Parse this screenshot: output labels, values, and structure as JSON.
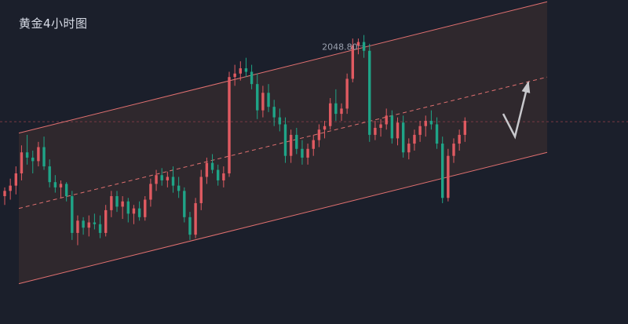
{
  "chart_data": {
    "type": "candlestick",
    "title": "黄金4小时图",
    "annotations": [
      {
        "label": "2048.80",
        "value": 2048.8
      }
    ],
    "colors": {
      "background": "#1b1f2b",
      "up": "#e05a61",
      "down": "#1fa487",
      "channel_line": "#e07070",
      "channel_fill": "#322a2e",
      "reference_line": "#7a3a44",
      "arrow": "#c8c8cc"
    },
    "ylim": [
      1890,
      2075
    ],
    "reference_price": 2005.5,
    "channel": {
      "upper_start": 1999,
      "upper_end": 2074,
      "mid_start": 1956,
      "mid_end": 2031,
      "lower_start": 1913,
      "lower_end": 1988
    },
    "projection": {
      "type": "arrow",
      "path_prices": [
        2010,
        1997,
        2028
      ]
    },
    "candles": [
      [
        1963,
        1968,
        1958,
        1966
      ],
      [
        1966,
        1973,
        1961,
        1969
      ],
      [
        1969,
        1980,
        1964,
        1976
      ],
      [
        1976,
        1992,
        1972,
        1988
      ],
      [
        1988,
        1998,
        1981,
        1985
      ],
      [
        1985,
        1989,
        1976,
        1983
      ],
      [
        1983,
        1994,
        1980,
        1991
      ],
      [
        1991,
        1997,
        1978,
        1980
      ],
      [
        1980,
        1984,
        1968,
        1971
      ],
      [
        1971,
        1975,
        1965,
        1968
      ],
      [
        1968,
        1972,
        1962,
        1970
      ],
      [
        1970,
        1971,
        1960,
        1963
      ],
      [
        1963,
        1966,
        1938,
        1942
      ],
      [
        1942,
        1952,
        1935,
        1949
      ],
      [
        1949,
        1951,
        1941,
        1945
      ],
      [
        1945,
        1952,
        1940,
        1948
      ],
      [
        1948,
        1953,
        1944,
        1947
      ],
      [
        1947,
        1952,
        1939,
        1942
      ],
      [
        1942,
        1958,
        1940,
        1955
      ],
      [
        1955,
        1966,
        1951,
        1963
      ],
      [
        1963,
        1966,
        1954,
        1957
      ],
      [
        1957,
        1963,
        1950,
        1960
      ],
      [
        1960,
        1962,
        1948,
        1953
      ],
      [
        1953,
        1958,
        1947,
        1956
      ],
      [
        1956,
        1960,
        1949,
        1951
      ],
      [
        1951,
        1963,
        1949,
        1961
      ],
      [
        1961,
        1973,
        1957,
        1970
      ],
      [
        1970,
        1978,
        1966,
        1975
      ],
      [
        1975,
        1979,
        1969,
        1972
      ],
      [
        1972,
        1977,
        1968,
        1974
      ],
      [
        1974,
        1980,
        1965,
        1969
      ],
      [
        1969,
        1974,
        1962,
        1966
      ],
      [
        1966,
        1968,
        1948,
        1951
      ],
      [
        1951,
        1954,
        1938,
        1941
      ],
      [
        1941,
        1962,
        1939,
        1959
      ],
      [
        1959,
        1978,
        1955,
        1974
      ],
      [
        1974,
        1985,
        1970,
        1982
      ],
      [
        1982,
        1987,
        1976,
        1978
      ],
      [
        1978,
        1981,
        1969,
        1972
      ],
      [
        1972,
        1980,
        1968,
        1976
      ],
      [
        1976,
        2034,
        1974,
        2031
      ],
      [
        2031,
        2038,
        2026,
        2033
      ],
      [
        2033,
        2040,
        2029,
        2036
      ],
      [
        2036,
        2042,
        2031,
        2034
      ],
      [
        2034,
        2038,
        2024,
        2027
      ],
      [
        2027,
        2033,
        2007,
        2012
      ],
      [
        2012,
        2026,
        2008,
        2022
      ],
      [
        2022,
        2027,
        2011,
        2014
      ],
      [
        2014,
        2018,
        2003,
        2008
      ],
      [
        2008,
        2013,
        2000,
        2004
      ],
      [
        2004,
        2008,
        1982,
        1986
      ],
      [
        1986,
        2001,
        1982,
        1998
      ],
      [
        1998,
        2002,
        1987,
        1990
      ],
      [
        1990,
        1995,
        1981,
        1985
      ],
      [
        1985,
        1993,
        1981,
        1990
      ],
      [
        1990,
        1998,
        1986,
        1995
      ],
      [
        1995,
        2004,
        1991,
        2001
      ],
      [
        2001,
        2006,
        1996,
        2003
      ],
      [
        2003,
        2019,
        2001,
        2016
      ],
      [
        2016,
        2024,
        2006,
        2010
      ],
      [
        2010,
        2016,
        2006,
        2013
      ],
      [
        2013,
        2033,
        2010,
        2030
      ],
      [
        2030,
        2053,
        2028,
        2049
      ],
      [
        2049,
        2053,
        2044,
        2051
      ],
      [
        2051,
        2055,
        2042,
        2046
      ],
      [
        2046,
        2050,
        1994,
        1998
      ],
      [
        1998,
        2006,
        1995,
        2002
      ],
      [
        2002,
        2007,
        1997,
        2004
      ],
      [
        2004,
        2013,
        2001,
        2009
      ],
      [
        2009,
        2012,
        1993,
        1996
      ],
      [
        1996,
        2008,
        1992,
        2005
      ],
      [
        2005,
        2009,
        1985,
        1988
      ],
      [
        1988,
        1996,
        1984,
        1993
      ],
      [
        1993,
        2001,
        1989,
        1998
      ],
      [
        1998,
        2006,
        1994,
        2003
      ],
      [
        2003,
        2009,
        1997,
        2006
      ],
      [
        2006,
        2012,
        2001,
        2004
      ],
      [
        2004,
        2008,
        1990,
        1993
      ],
      [
        1993,
        1997,
        1959,
        1962
      ],
      [
        1962,
        1990,
        1960,
        1986
      ],
      [
        1986,
        1996,
        1982,
        1993
      ],
      [
        1993,
        2001,
        1989,
        1998
      ],
      [
        1998,
        2008,
        1994,
        2006
      ]
    ]
  }
}
